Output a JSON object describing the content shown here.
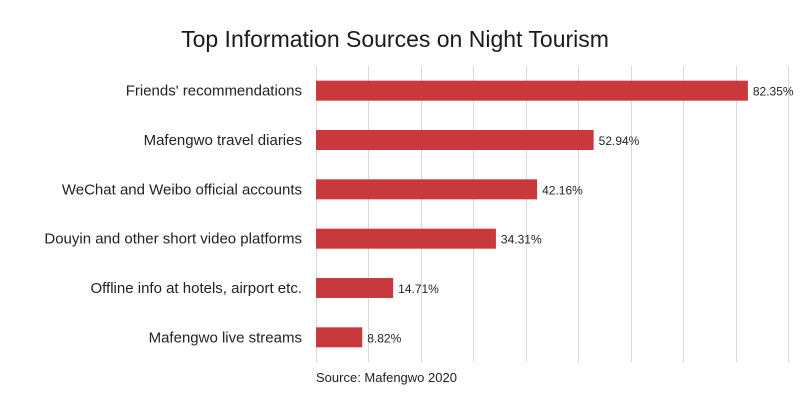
{
  "chart_data": {
    "type": "bar",
    "orientation": "horizontal",
    "title": "Top Information Sources on Night Tourism",
    "categories": [
      "Friends' recommendations",
      "Mafengwo travel diaries",
      "WeChat and Weibo official accounts",
      "Douyin and other short video platforms",
      "Offline info at hotels, airport etc.",
      "Mafengwo live streams"
    ],
    "values": [
      82.35,
      52.94,
      42.16,
      34.31,
      14.71,
      8.82
    ],
    "value_labels": [
      "82.35%",
      "52.94%",
      "42.16%",
      "34.31%",
      "14.71%",
      "8.82%"
    ],
    "xlim": [
      0,
      90
    ],
    "grid": true,
    "bar_color": "#c8383c",
    "source": "Source: Mafengwo 2020"
  }
}
